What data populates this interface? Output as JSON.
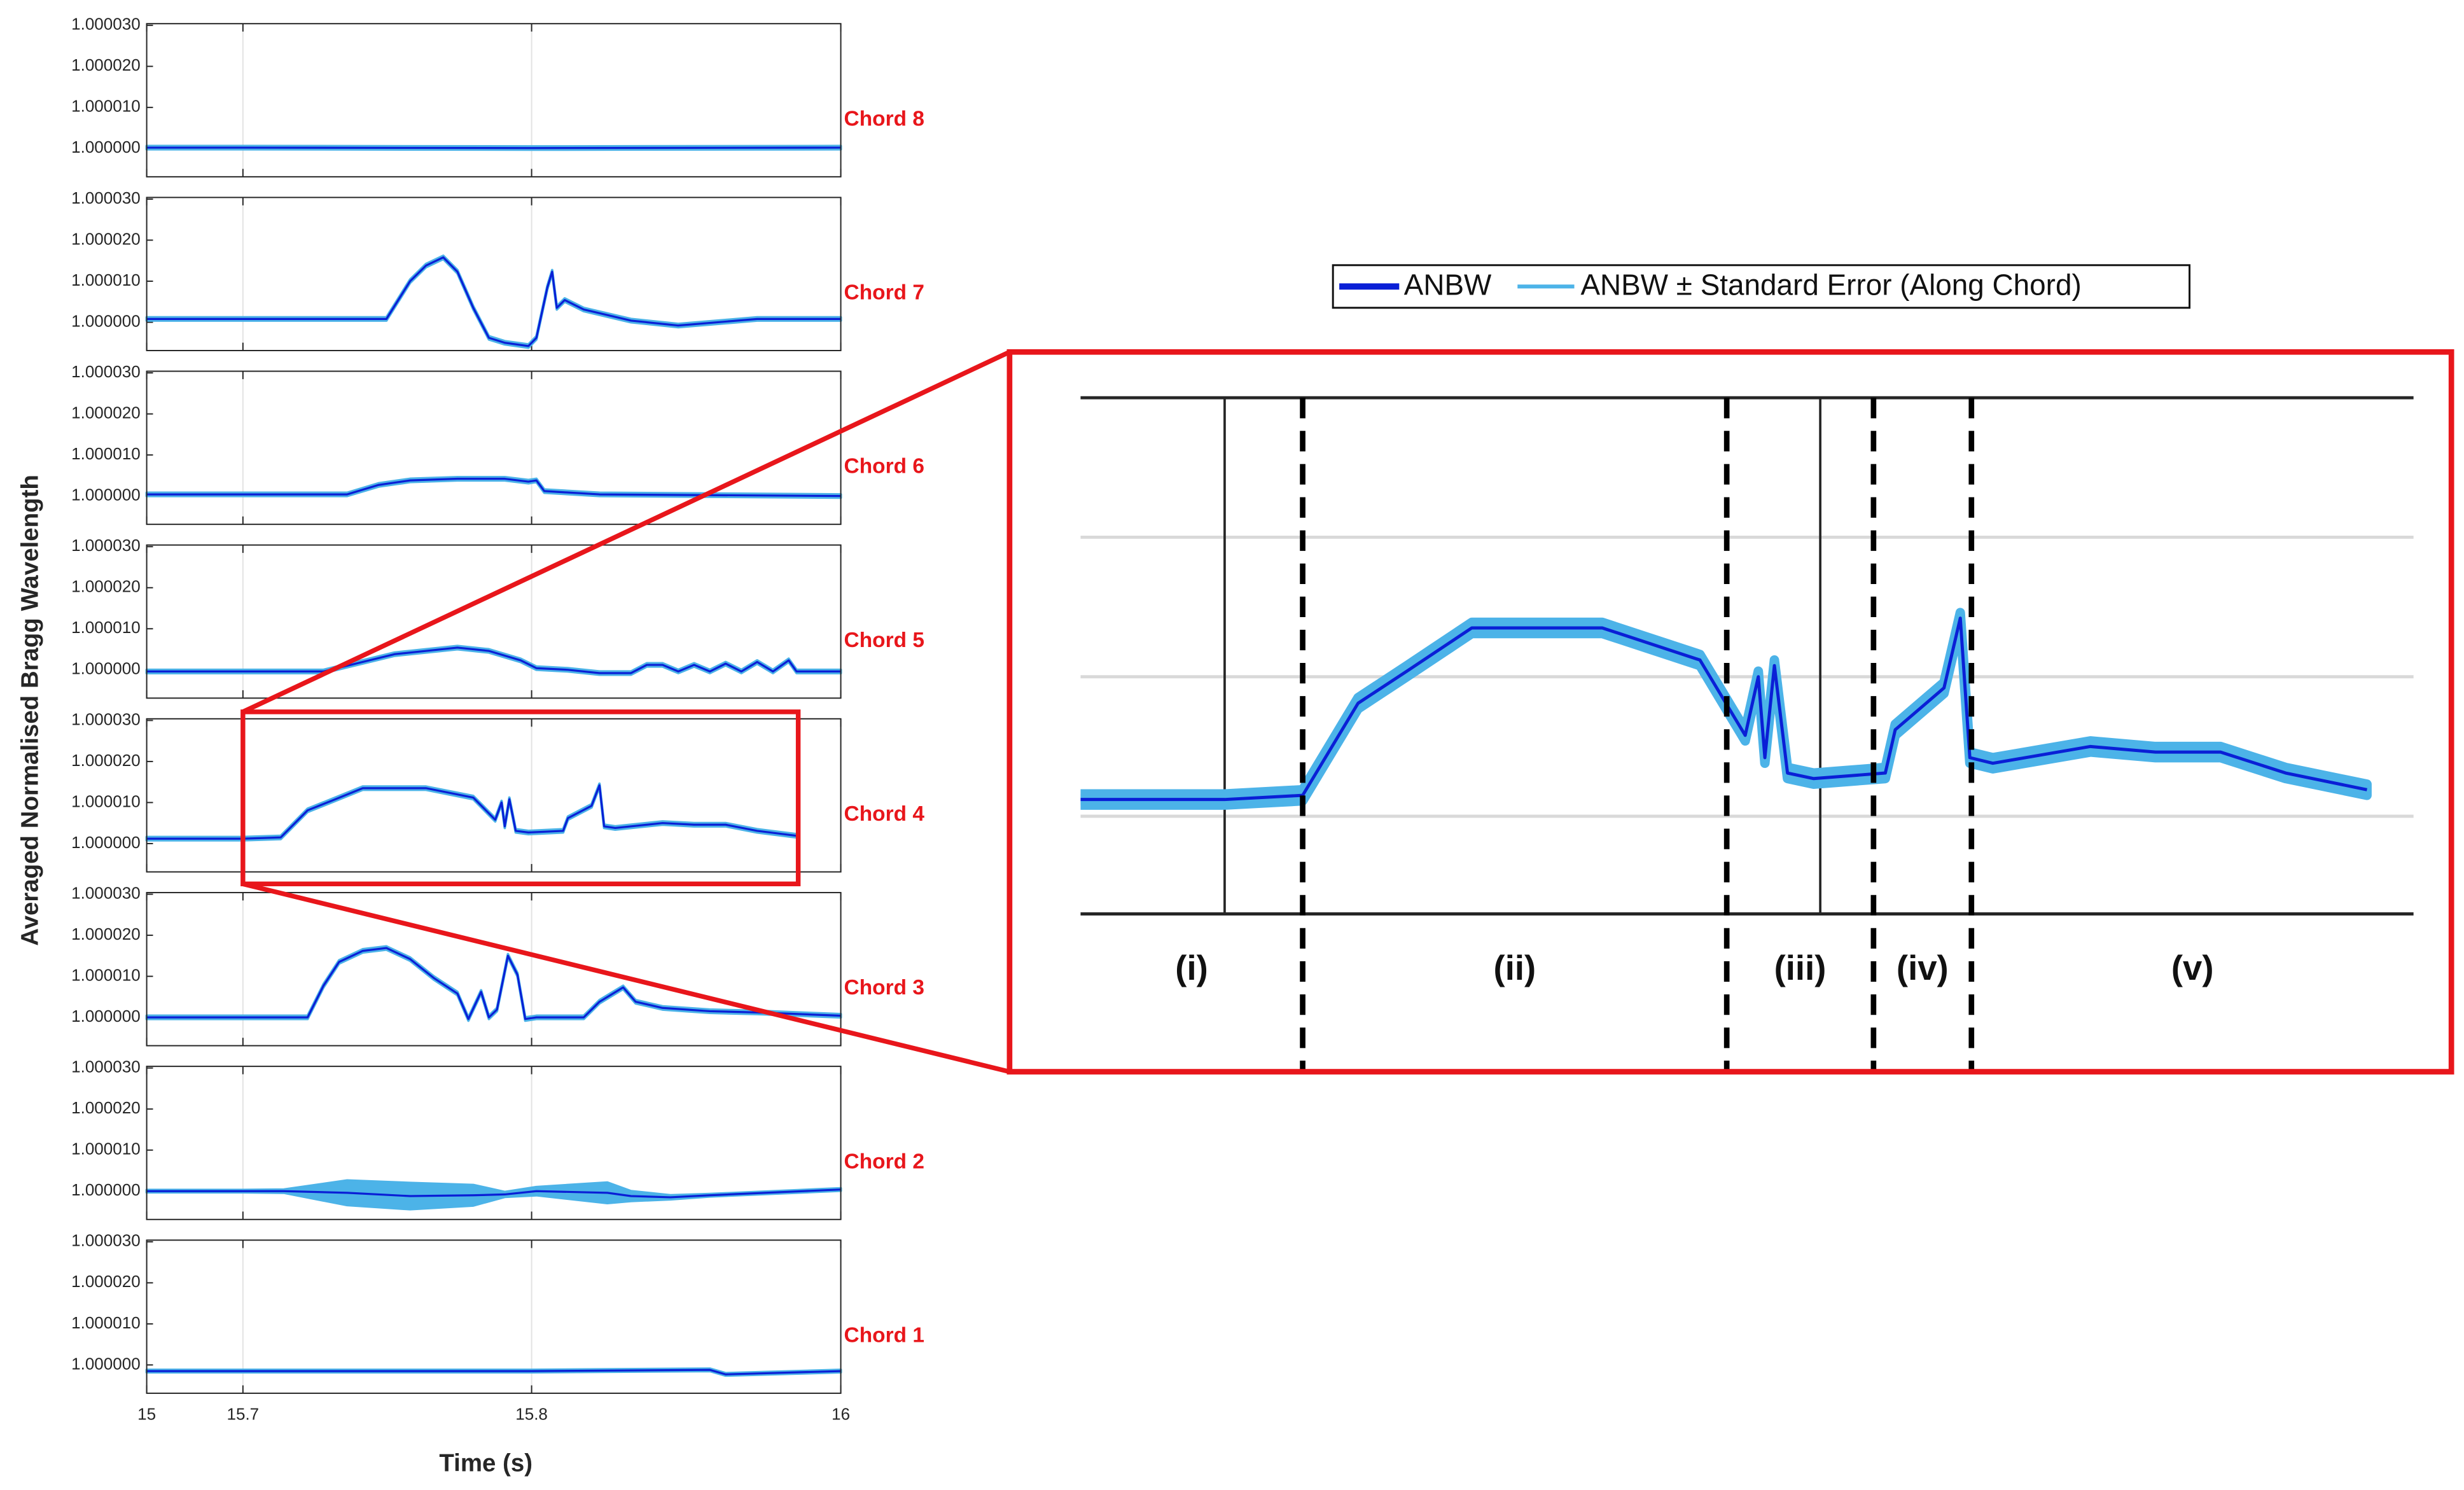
{
  "figure": {
    "xlabel": "Time (s)",
    "ylabel": "Averaged Normalised Bragg Wavelength",
    "xlim": [
      15,
      16
    ],
    "xticks": [
      15,
      15.7,
      15.8,
      16
    ],
    "ylim": [
      0.9999931,
      1.0000304
    ],
    "yticks": [
      {
        "value": 1,
        "label": "1.000000"
      },
      {
        "value": 1.00001,
        "label": "1.000010"
      },
      {
        "value": 1.00002,
        "label": "1.000020"
      },
      {
        "value": 1.00003,
        "label": "1.000030"
      }
    ],
    "legend": [
      {
        "name": "ANBW",
        "color": "#0a1fd6"
      },
      {
        "name": "ANBW ±  Standard Error (Along Chord)",
        "color": "#4cb3e8"
      }
    ]
  },
  "chart_data": [
    {
      "type": "line",
      "title": "Chord 8",
      "x": [
        15,
        15.7,
        15.8,
        16
      ],
      "values": [
        1.0000002,
        1.0000002,
        1.0000001,
        1.0000002
      ],
      "error": [
        4e-07,
        4e-07,
        4e-07,
        4e-07
      ]
    },
    {
      "type": "line",
      "title": "Chord 7",
      "x": [
        15,
        15.7,
        15.7497,
        15.7579,
        15.7634,
        15.7694,
        15.7743,
        15.7798,
        15.7852,
        15.7907,
        15.7989,
        15.8031,
        15.8102,
        15.8133,
        15.8163,
        15.8214,
        15.8337,
        15.8643,
        15.8949,
        15.9459,
        16
      ],
      "values": [
        1.0000008,
        1.0000008,
        1.0000008,
        1.00001,
        1.0000138,
        1.0000158,
        1.0000123,
        1.0000035,
        0.9999962,
        0.999995,
        0.9999942,
        0.9999962,
        1.0000085,
        1.0000123,
        1.0000035,
        1.0000054,
        1.0000031,
        1.0000004,
        0.9999992,
        1.0000008,
        1.0000008
      ],
      "error": [
        4e-07,
        4e-07,
        4e-07,
        4e-07,
        4e-07,
        4e-07,
        4e-07,
        4e-07,
        4e-07,
        4e-07,
        4e-07,
        4e-07,
        4e-07,
        4e-07,
        4e-07,
        4e-07,
        4e-07,
        4e-07,
        4e-07,
        4e-07,
        4e-07
      ]
    },
    {
      "type": "line",
      "title": "Chord 6",
      "x": [
        15,
        15.7,
        15.7361,
        15.747,
        15.7579,
        15.7743,
        15.7907,
        15.7989,
        15.8031,
        15.8082,
        15.8439,
        16
      ],
      "values": [
        1.0000004,
        1.0000004,
        1.0000004,
        1.0000027,
        1.0000038,
        1.0000042,
        1.0000042,
        1.0000035,
        1.0000038,
        1.0000012,
        1.0000004,
        1
      ],
      "error": [
        4e-07,
        4e-07,
        4e-07,
        4e-07,
        4e-07,
        4e-07,
        4e-07,
        4e-07,
        4e-07,
        4e-07,
        4e-07,
        4e-07
      ]
    },
    {
      "type": "line",
      "title": "Chord 5",
      "x": [
        15,
        15.7,
        15.7279,
        15.7525,
        15.7743,
        15.7852,
        15.7962,
        15.8031,
        15.8235,
        15.8439,
        15.8643,
        15.8745,
        15.8847,
        15.8949,
        15.9051,
        15.9153,
        15.9255,
        15.9357,
        15.9459,
        15.9561,
        15.9663,
        15.9714,
        16
      ],
      "values": [
        0.9999996,
        0.9999996,
        0.9999996,
        1.0000038,
        1.0000054,
        1.0000046,
        1.0000023,
        1.0000004,
        1,
        0.9999992,
        0.9999992,
        1.0000012,
        1.0000012,
        0.9999996,
        1.0000012,
        0.9999996,
        1.0000015,
        0.9999996,
        1.0000019,
        0.9999996,
        1.0000023,
        0.9999996,
        0.9999996
      ],
      "error": [
        4e-07,
        4e-07,
        4e-07,
        4e-07,
        4e-07,
        4e-07,
        4e-07,
        4e-07,
        4e-07,
        4e-07,
        4e-07,
        4e-07,
        4e-07,
        4e-07,
        4e-07,
        4e-07,
        4e-07,
        4e-07,
        4e-07,
        4e-07,
        4e-07,
        4e-07,
        4e-07
      ]
    },
    {
      "type": "line",
      "title": "Chord 4",
      "x": [
        15,
        15.7,
        15.7131,
        15.7224,
        15.7306,
        15.7415,
        15.7634,
        15.7798,
        15.7874,
        15.7896,
        15.7907,
        15.7923,
        15.7945,
        15.7989,
        15.8204,
        15.8235,
        15.8388,
        15.8439,
        15.8469,
        15.8541,
        15.8847,
        15.9051,
        15.9255,
        15.9459,
        15.9714
      ],
      "values": [
        1.0000012,
        1.0000012,
        1.0000015,
        1.0000081,
        1.0000104,
        1.0000135,
        1.0000135,
        1.0000112,
        1.0000058,
        1.00001,
        1.0000042,
        1.0000108,
        1.0000031,
        1.0000027,
        1.0000031,
        1.0000062,
        1.0000092,
        1.0000142,
        1.0000042,
        1.0000038,
        1.000005,
        1.0000046,
        1.0000046,
        1.0000031,
        1.0000019
      ],
      "error": [
        4e-07,
        4e-07,
        4e-07,
        4e-07,
        4e-07,
        4e-07,
        4e-07,
        4e-07,
        4e-07,
        4e-07,
        4e-07,
        4e-07,
        4e-07,
        4e-07,
        4e-07,
        4e-07,
        4e-07,
        4e-07,
        4e-07,
        4e-07,
        4e-07,
        4e-07,
        4e-07,
        4e-07,
        4e-07
      ],
      "zoom": {
        "xlim": [
          15.192,
          15.986
        ],
        "ylim": [
          0.999993,
          1.00003
        ],
        "xgrid": [
          15.7,
          15.8
        ],
        "ygrid": [
          1,
          1.00001,
          1.00002
        ],
        "dividers": [
          15.7131,
          15.7843,
          15.8167,
          15.8474
        ],
        "regions": [
          "(i)",
          "(ii)",
          "(iii)",
          "(iv)",
          "(v)"
        ]
      }
    },
    {
      "type": "line",
      "title": "Chord 3",
      "x": [
        15,
        15.7,
        15.7224,
        15.7279,
        15.7333,
        15.7415,
        15.7497,
        15.7579,
        15.7661,
        15.7743,
        15.7781,
        15.7825,
        15.7852,
        15.788,
        15.7918,
        15.7951,
        15.7978,
        15.8031,
        15.8337,
        15.8439,
        15.8592,
        15.8673,
        15.8847,
        15.9153,
        15.9459,
        16
      ],
      "values": [
        1,
        1,
        1,
        1.0000077,
        1.0000135,
        1.0000162,
        1.0000169,
        1.0000142,
        1.0000096,
        1.0000058,
        0.9999996,
        1.0000062,
        1,
        1.0000019,
        1.000015,
        1.0000104,
        0.9999996,
        1,
        1,
        1.0000038,
        1.0000073,
        1.0000038,
        1.0000023,
        1.0000015,
        1.0000012,
        1.0000004
      ],
      "error": [
        4e-07,
        4e-07,
        4e-07,
        4e-07,
        4e-07,
        4e-07,
        4e-07,
        4e-07,
        4e-07,
        4e-07,
        4e-07,
        4e-07,
        4e-07,
        4e-07,
        4e-07,
        4e-07,
        4e-07,
        4e-07,
        4e-07,
        4e-07,
        4e-07,
        4e-07,
        4e-07,
        4e-07,
        4e-07,
        4e-07
      ]
    },
    {
      "type": "line",
      "title": "Chord 2",
      "x": [
        15,
        15.7,
        15.7142,
        15.7361,
        15.7579,
        15.7798,
        15.7907,
        15.8031,
        15.849,
        15.8643,
        15.8898,
        15.9153,
        16
      ],
      "values": [
        1,
        1,
        1,
        0.9999996,
        0.9999988,
        0.999999,
        0.9999992,
        1,
        0.9999996,
        0.9999988,
        0.9999985,
        0.999999,
        1.0000004
      ],
      "error": [
        3e-07,
        3e-07,
        4e-07,
        3e-06,
        3.2e-06,
        2.5e-06,
        6e-07,
        1e-06,
        2.5e-06,
        1.2e-06,
        5e-07,
        3e-07,
        3e-07
      ]
    },
    {
      "type": "line",
      "title": "Chord 1",
      "x": [
        15,
        15.7,
        15.8,
        15.9153,
        15.9255,
        16
      ],
      "values": [
        0.9999985,
        0.9999985,
        0.9999985,
        0.9999988,
        0.9999977,
        0.9999985
      ],
      "error": [
        3e-07,
        3e-07,
        3e-07,
        3e-07,
        3e-07,
        3e-07
      ]
    }
  ]
}
